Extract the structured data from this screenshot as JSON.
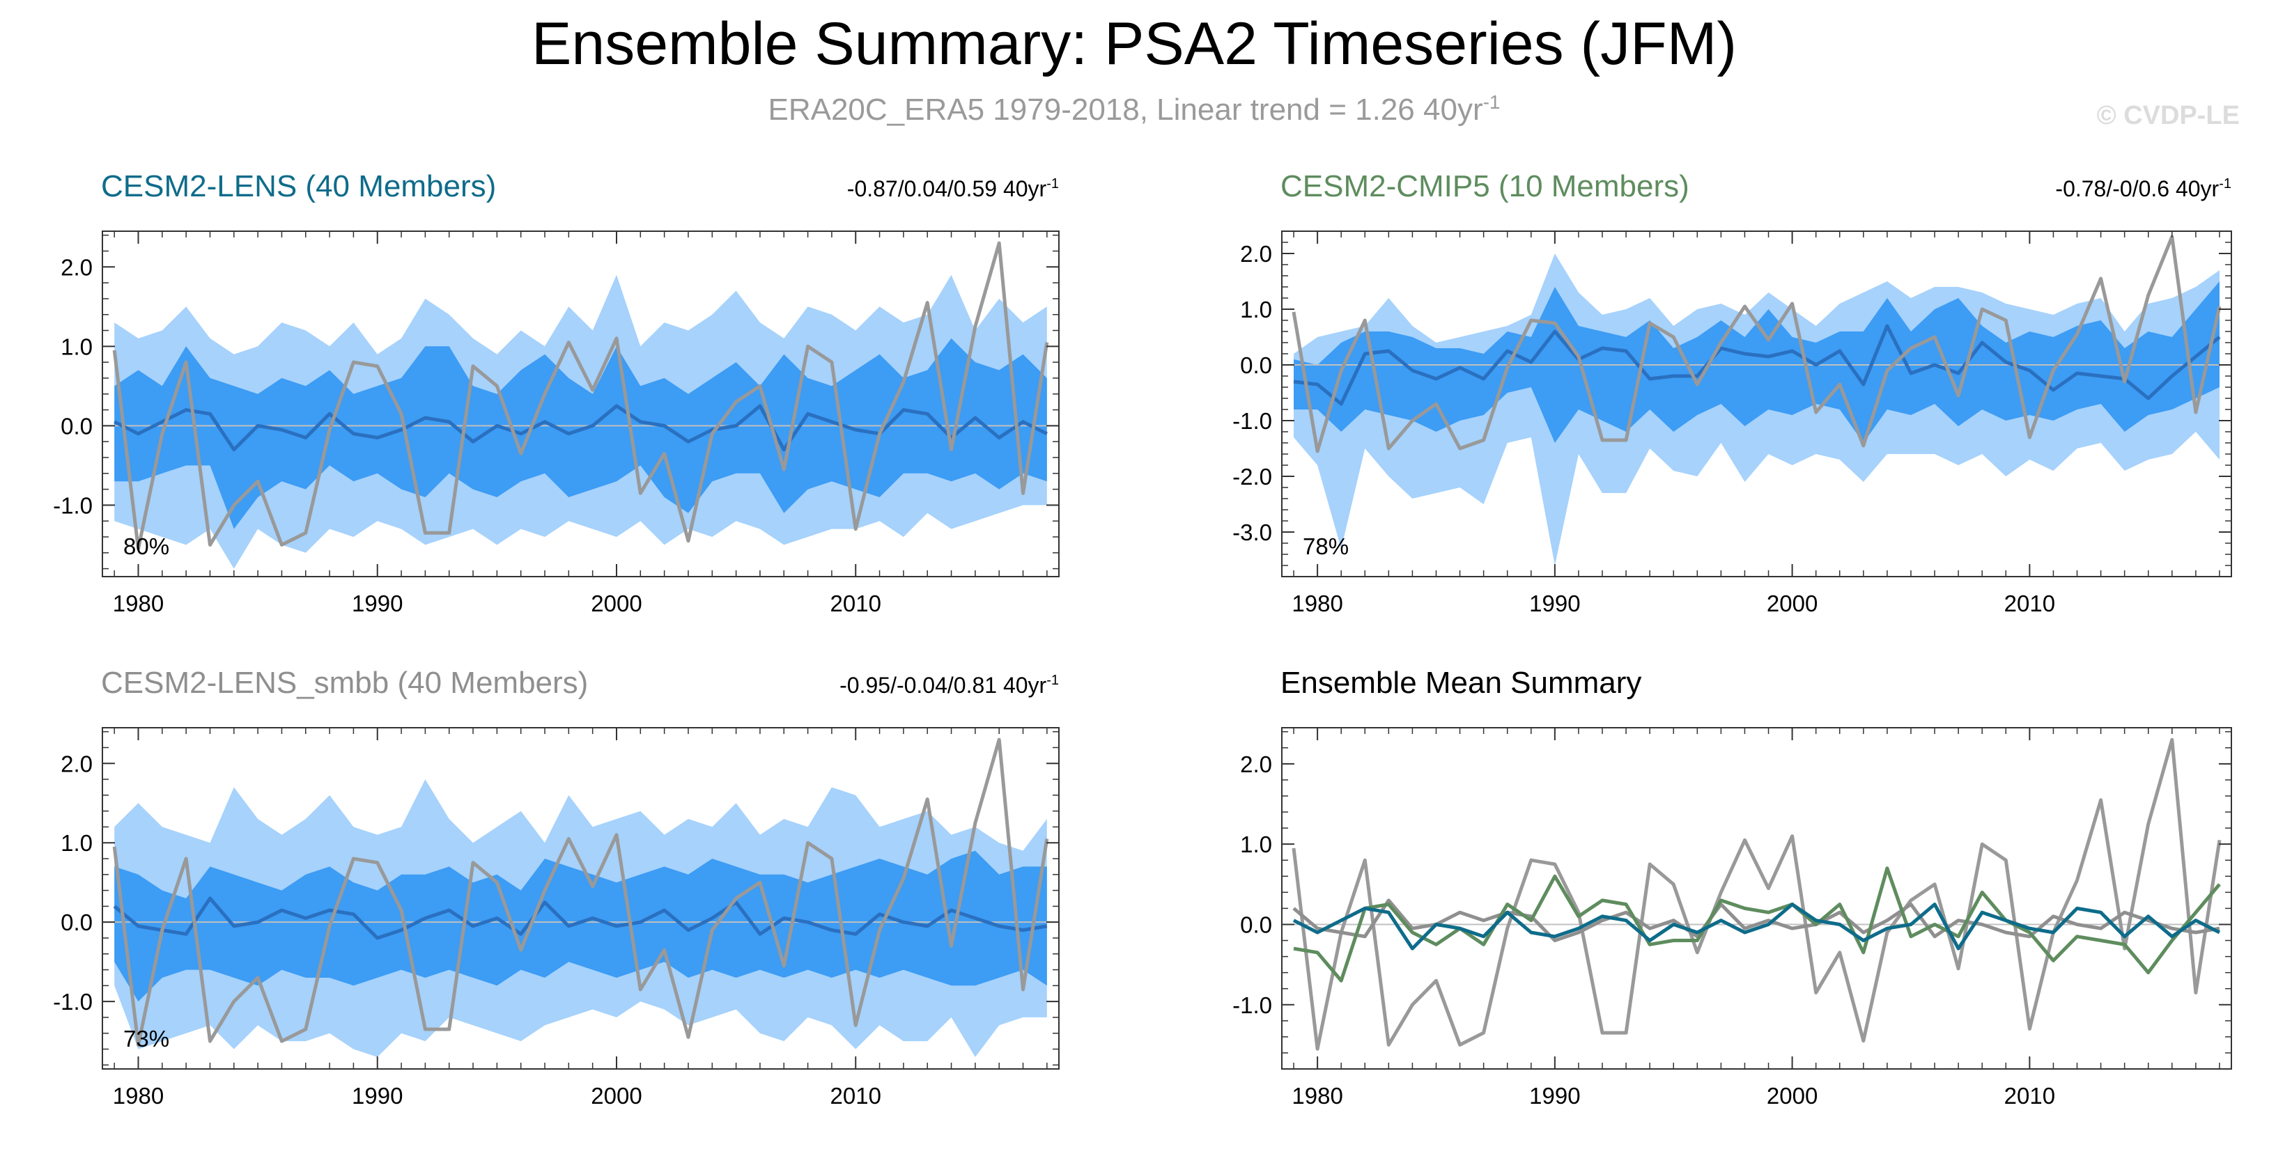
{
  "title": "Ensemble Summary: PSA2 Timeseries (JFM)",
  "subtitle_main": "ERA20C_ERA5 1979-2018, Linear trend = 1.26 40yr",
  "subtitle_sup": "-1",
  "watermark": "© CVDP-LE",
  "colors": {
    "outer_band": "#a6d2fc",
    "inner_band": "#3d9cf4",
    "ens_mean_line": "#2a70c0",
    "obs_line": "#999999",
    "cesm2_lens": "#0e6c8a",
    "cesm2_cmip5": "#5e8c5e",
    "cesm2_lens_smbb": "#8f8f8f",
    "zero_line": "#c0c0c0"
  },
  "chart_data": [
    {
      "type": "line",
      "title": "CESM2-LENS (40 Members)",
      "title_color": "#0e6c8a",
      "trend_label": "-0.87/0.04/0.59 40yr",
      "trend_sup": "-1",
      "pct_label": "80%",
      "years": [
        1979,
        1980,
        1981,
        1982,
        1983,
        1984,
        1985,
        1986,
        1987,
        1988,
        1989,
        1990,
        1991,
        1992,
        1993,
        1994,
        1995,
        1996,
        1997,
        1998,
        1999,
        2000,
        2001,
        2002,
        2003,
        2004,
        2005,
        2006,
        2007,
        2008,
        2009,
        2010,
        2011,
        2012,
        2013,
        2014,
        2015,
        2016,
        2017,
        2018
      ],
      "xticks": [
        1980,
        1990,
        2000,
        2010
      ],
      "yticks": [
        2.0,
        1.0,
        0.0,
        -1.0
      ],
      "ytick_labels": [
        "2.0",
        "1.0",
        "0.0",
        "-1.0"
      ],
      "ylim": [
        -1.9,
        2.45
      ],
      "xlim": [
        1978.5,
        2018.5
      ],
      "outer_upper": [
        1.3,
        1.1,
        1.2,
        1.5,
        1.1,
        0.9,
        1.0,
        1.3,
        1.2,
        1.0,
        1.3,
        0.9,
        1.1,
        1.6,
        1.4,
        1.1,
        0.9,
        1.2,
        1.0,
        1.5,
        1.2,
        1.9,
        1.0,
        1.3,
        1.2,
        1.4,
        1.7,
        1.3,
        1.1,
        1.5,
        1.4,
        1.2,
        1.5,
        1.3,
        1.4,
        1.9,
        1.2,
        1.6,
        1.3,
        1.5
      ],
      "outer_lower": [
        -1.2,
        -1.3,
        -1.4,
        -1.5,
        -1.3,
        -1.8,
        -1.3,
        -1.5,
        -1.6,
        -1.3,
        -1.4,
        -1.2,
        -1.3,
        -1.5,
        -1.4,
        -1.3,
        -1.5,
        -1.3,
        -1.4,
        -1.2,
        -1.3,
        -1.4,
        -1.2,
        -1.5,
        -1.3,
        -1.4,
        -1.2,
        -1.3,
        -1.5,
        -1.4,
        -1.3,
        -1.3,
        -1.2,
        -1.4,
        -1.1,
        -1.3,
        -1.2,
        -1.1,
        -1.0,
        -1.0
      ],
      "inner_upper": [
        0.5,
        0.7,
        0.5,
        1.0,
        0.6,
        0.5,
        0.4,
        0.6,
        0.5,
        0.7,
        0.4,
        0.5,
        0.6,
        1.0,
        1.0,
        0.5,
        0.4,
        0.7,
        0.9,
        0.6,
        0.4,
        1.0,
        0.5,
        0.6,
        0.4,
        0.6,
        0.8,
        0.5,
        0.9,
        0.6,
        0.5,
        0.7,
        0.9,
        0.6,
        0.7,
        1.1,
        0.8,
        0.7,
        0.9,
        0.6
      ],
      "inner_lower": [
        -0.7,
        -0.7,
        -0.6,
        -0.5,
        -0.5,
        -1.3,
        -0.9,
        -0.7,
        -0.8,
        -0.5,
        -0.7,
        -0.6,
        -0.8,
        -0.9,
        -0.6,
        -0.8,
        -0.9,
        -0.7,
        -0.6,
        -0.9,
        -0.8,
        -0.7,
        -0.5,
        -0.9,
        -1.1,
        -0.7,
        -0.6,
        -0.6,
        -1.1,
        -0.8,
        -0.7,
        -0.8,
        -0.9,
        -0.6,
        -0.6,
        -0.7,
        -0.6,
        -0.8,
        -0.6,
        -0.7
      ],
      "ens_mean": [
        0.05,
        -0.1,
        0.05,
        0.2,
        0.15,
        -0.3,
        0.0,
        -0.05,
        -0.15,
        0.15,
        -0.1,
        -0.15,
        -0.05,
        0.1,
        0.05,
        -0.2,
        0.0,
        -0.1,
        0.05,
        -0.1,
        0.0,
        0.25,
        0.05,
        0.0,
        -0.2,
        -0.05,
        0.0,
        0.25,
        -0.3,
        0.15,
        0.05,
        -0.05,
        -0.1,
        0.2,
        0.15,
        -0.15,
        0.1,
        -0.15,
        0.05,
        -0.1
      ],
      "obs": [
        0.95,
        -1.55,
        -0.1,
        0.8,
        -1.5,
        -1.0,
        -0.7,
        -1.5,
        -1.35,
        -0.05,
        0.8,
        0.75,
        0.15,
        -1.35,
        -1.35,
        0.75,
        0.5,
        -0.35,
        0.4,
        1.05,
        0.45,
        1.1,
        -0.85,
        -0.35,
        -1.45,
        -0.1,
        0.3,
        0.5,
        -0.55,
        1.0,
        0.8,
        -1.3,
        -0.1,
        0.55,
        1.55,
        -0.3,
        1.25,
        2.3,
        -0.85,
        1.05
      ]
    },
    {
      "type": "line",
      "title": "CESM2-CMIP5 (10 Members)",
      "title_color": "#5e8c5e",
      "trend_label": "-0.78/-0/0.6 40yr",
      "trend_sup": "-1",
      "pct_label": "78%",
      "years": [
        1979,
        1980,
        1981,
        1982,
        1983,
        1984,
        1985,
        1986,
        1987,
        1988,
        1989,
        1990,
        1991,
        1992,
        1993,
        1994,
        1995,
        1996,
        1997,
        1998,
        1999,
        2000,
        2001,
        2002,
        2003,
        2004,
        2005,
        2006,
        2007,
        2008,
        2009,
        2010,
        2011,
        2012,
        2013,
        2014,
        2015,
        2016,
        2017,
        2018
      ],
      "xticks": [
        1980,
        1990,
        2000,
        2010
      ],
      "yticks": [
        2.0,
        1.0,
        0.0,
        -1.0,
        -2.0,
        -3.0
      ],
      "ytick_labels": [
        "2.0",
        "1.0",
        "0.0",
        "-1.0",
        "-2.0",
        "-3.0"
      ],
      "ylim": [
        -3.8,
        2.4
      ],
      "xlim": [
        1978.5,
        2018.5
      ],
      "outer_upper": [
        0.2,
        0.5,
        0.6,
        0.7,
        1.2,
        0.7,
        0.4,
        0.5,
        0.6,
        0.7,
        0.9,
        2.0,
        1.3,
        0.9,
        1.0,
        1.2,
        0.7,
        1.0,
        1.1,
        0.9,
        1.3,
        1.0,
        0.7,
        1.1,
        1.3,
        1.5,
        1.2,
        1.4,
        1.4,
        1.3,
        1.1,
        1.0,
        0.9,
        1.1,
        1.2,
        0.6,
        1.1,
        1.2,
        1.4,
        1.7
      ],
      "outer_lower": [
        -1.3,
        -1.8,
        -3.3,
        -1.5,
        -2.0,
        -2.4,
        -2.3,
        -2.2,
        -2.5,
        -1.4,
        -1.3,
        -3.6,
        -1.6,
        -2.3,
        -2.3,
        -1.5,
        -1.9,
        -2.0,
        -1.4,
        -2.1,
        -1.6,
        -1.8,
        -1.6,
        -1.7,
        -2.1,
        -1.6,
        -1.6,
        -1.6,
        -1.8,
        -1.6,
        -2.0,
        -1.7,
        -1.9,
        -1.5,
        -1.4,
        -1.9,
        -1.7,
        -1.6,
        -1.2,
        -1.7
      ],
      "inner_upper": [
        0.1,
        0.0,
        0.4,
        0.6,
        0.6,
        0.5,
        0.3,
        0.3,
        0.2,
        0.6,
        0.5,
        1.4,
        0.7,
        0.6,
        0.5,
        0.8,
        0.3,
        0.5,
        0.8,
        0.5,
        1.0,
        0.5,
        0.4,
        0.6,
        0.6,
        1.2,
        0.6,
        1.0,
        1.2,
        0.7,
        0.4,
        0.6,
        0.5,
        0.7,
        0.8,
        0.3,
        0.6,
        0.5,
        1.0,
        1.5
      ],
      "inner_lower": [
        -0.8,
        -0.8,
        -1.2,
        -0.8,
        -0.9,
        -1.0,
        -1.2,
        -1.0,
        -0.9,
        -0.5,
        -0.4,
        -1.4,
        -0.8,
        -1.0,
        -1.2,
        -0.8,
        -1.2,
        -0.9,
        -0.7,
        -1.1,
        -0.8,
        -0.9,
        -0.7,
        -0.8,
        -1.4,
        -0.8,
        -0.9,
        -0.7,
        -1.1,
        -0.8,
        -1.0,
        -0.9,
        -1.0,
        -0.8,
        -0.7,
        -1.2,
        -0.9,
        -0.8,
        -0.6,
        -0.4
      ],
      "ens_mean": [
        -0.3,
        -0.35,
        -0.7,
        0.2,
        0.25,
        -0.1,
        -0.25,
        -0.05,
        -0.25,
        0.25,
        0.05,
        0.6,
        0.1,
        0.3,
        0.25,
        -0.25,
        -0.2,
        -0.2,
        0.3,
        0.2,
        0.15,
        0.25,
        0.0,
        0.25,
        -0.35,
        0.7,
        -0.15,
        0.0,
        -0.15,
        0.4,
        0.05,
        -0.1,
        -0.45,
        -0.15,
        -0.2,
        -0.25,
        -0.6,
        -0.2,
        0.15,
        0.5
      ],
      "obs": [
        0.95,
        -1.55,
        -0.1,
        0.8,
        -1.5,
        -1.0,
        -0.7,
        -1.5,
        -1.35,
        -0.05,
        0.8,
        0.75,
        0.15,
        -1.35,
        -1.35,
        0.75,
        0.5,
        -0.35,
        0.4,
        1.05,
        0.45,
        1.1,
        -0.85,
        -0.35,
        -1.45,
        -0.1,
        0.3,
        0.5,
        -0.55,
        1.0,
        0.8,
        -1.3,
        -0.1,
        0.55,
        1.55,
        -0.3,
        1.25,
        2.3,
        -0.85,
        1.05
      ]
    },
    {
      "type": "line",
      "title": "CESM2-LENS_smbb (40 Members)",
      "title_color": "#8f8f8f",
      "trend_label": "-0.95/-0.04/0.81 40yr",
      "trend_sup": "-1",
      "pct_label": "73%",
      "years": [
        1979,
        1980,
        1981,
        1982,
        1983,
        1984,
        1985,
        1986,
        1987,
        1988,
        1989,
        1990,
        1991,
        1992,
        1993,
        1994,
        1995,
        1996,
        1997,
        1998,
        1999,
        2000,
        2001,
        2002,
        2003,
        2004,
        2005,
        2006,
        2007,
        2008,
        2009,
        2010,
        2011,
        2012,
        2013,
        2014,
        2015,
        2016,
        2017,
        2018
      ],
      "xticks": [
        1980,
        1990,
        2000,
        2010
      ],
      "yticks": [
        2.0,
        1.0,
        0.0,
        -1.0
      ],
      "ytick_labels": [
        "2.0",
        "1.0",
        "0.0",
        "-1.0"
      ],
      "ylim": [
        -1.85,
        2.45
      ],
      "xlim": [
        1978.5,
        2018.5
      ],
      "outer_upper": [
        1.2,
        1.5,
        1.2,
        1.1,
        1.0,
        1.7,
        1.3,
        1.1,
        1.3,
        1.6,
        1.2,
        1.1,
        1.2,
        1.8,
        1.3,
        1.0,
        1.2,
        1.4,
        1.0,
        1.6,
        1.2,
        1.3,
        1.4,
        1.1,
        1.3,
        1.2,
        1.5,
        1.1,
        1.3,
        1.2,
        1.7,
        1.6,
        1.2,
        1.3,
        1.4,
        1.1,
        1.2,
        1.0,
        0.9,
        1.3
      ],
      "outer_lower": [
        -0.8,
        -1.6,
        -1.5,
        -1.4,
        -1.3,
        -1.6,
        -1.3,
        -1.5,
        -1.5,
        -1.4,
        -1.6,
        -1.7,
        -1.4,
        -1.5,
        -1.2,
        -1.3,
        -1.4,
        -1.5,
        -1.3,
        -1.2,
        -1.1,
        -1.2,
        -1.0,
        -1.1,
        -1.3,
        -1.2,
        -1.1,
        -1.4,
        -1.5,
        -1.2,
        -1.3,
        -1.6,
        -1.3,
        -1.5,
        -1.5,
        -1.2,
        -1.7,
        -1.3,
        -1.2,
        -1.2
      ],
      "inner_upper": [
        0.7,
        0.6,
        0.4,
        0.3,
        0.7,
        0.6,
        0.5,
        0.4,
        0.6,
        0.7,
        0.5,
        0.4,
        0.6,
        0.6,
        0.7,
        0.5,
        0.6,
        0.4,
        0.8,
        0.7,
        0.6,
        0.5,
        0.6,
        0.7,
        0.6,
        0.8,
        0.7,
        0.6,
        0.6,
        0.5,
        0.6,
        0.7,
        0.8,
        0.7,
        0.6,
        0.8,
        0.9,
        0.6,
        0.7,
        0.7
      ],
      "inner_lower": [
        -0.5,
        -1.0,
        -0.7,
        -0.6,
        -0.6,
        -0.7,
        -0.8,
        -0.6,
        -0.7,
        -0.7,
        -0.8,
        -0.7,
        -0.6,
        -0.7,
        -0.6,
        -0.7,
        -0.8,
        -0.6,
        -0.7,
        -0.5,
        -0.6,
        -0.7,
        -0.6,
        -0.5,
        -0.7,
        -0.6,
        -0.7,
        -0.6,
        -0.7,
        -0.6,
        -0.7,
        -0.6,
        -0.7,
        -0.6,
        -0.7,
        -0.8,
        -0.8,
        -0.7,
        -0.6,
        -0.8
      ],
      "ens_mean": [
        0.2,
        -0.05,
        -0.1,
        -0.15,
        0.3,
        -0.05,
        0.0,
        0.15,
        0.05,
        0.15,
        0.1,
        -0.2,
        -0.1,
        0.05,
        0.15,
        -0.05,
        0.05,
        -0.15,
        0.25,
        -0.05,
        0.05,
        -0.05,
        0.0,
        0.15,
        -0.1,
        0.05,
        0.25,
        -0.15,
        0.05,
        0.0,
        -0.1,
        -0.15,
        0.1,
        0.0,
        -0.05,
        0.15,
        0.05,
        -0.05,
        -0.1,
        -0.05
      ],
      "obs": [
        0.95,
        -1.55,
        -0.1,
        0.8,
        -1.5,
        -1.0,
        -0.7,
        -1.5,
        -1.35,
        -0.05,
        0.8,
        0.75,
        0.15,
        -1.35,
        -1.35,
        0.75,
        0.5,
        -0.35,
        0.4,
        1.05,
        0.45,
        1.1,
        -0.85,
        -0.35,
        -1.45,
        -0.1,
        0.3,
        0.5,
        -0.55,
        1.0,
        0.8,
        -1.3,
        -0.1,
        0.55,
        1.55,
        -0.3,
        1.25,
        2.3,
        -0.85,
        1.05
      ]
    },
    {
      "type": "line",
      "title": "Ensemble Mean Summary",
      "title_color": "#000000",
      "trend_label": "",
      "trend_sup": "",
      "pct_label": "",
      "years": [
        1979,
        1980,
        1981,
        1982,
        1983,
        1984,
        1985,
        1986,
        1987,
        1988,
        1989,
        1990,
        1991,
        1992,
        1993,
        1994,
        1995,
        1996,
        1997,
        1998,
        1999,
        2000,
        2001,
        2002,
        2003,
        2004,
        2005,
        2006,
        2007,
        2008,
        2009,
        2010,
        2011,
        2012,
        2013,
        2014,
        2015,
        2016,
        2017,
        2018
      ],
      "xticks": [
        1980,
        1990,
        2000,
        2010
      ],
      "yticks": [
        2.0,
        1.0,
        0.0,
        -1.0
      ],
      "ytick_labels": [
        "2.0",
        "1.0",
        "0.0",
        "-1.0"
      ],
      "ylim": [
        -1.8,
        2.45
      ],
      "xlim": [
        1978.5,
        2018.5
      ],
      "series": [
        {
          "name": "ERA20C_ERA5",
          "color": "#999999",
          "values": [
            0.95,
            -1.55,
            -0.1,
            0.8,
            -1.5,
            -1.0,
            -0.7,
            -1.5,
            -1.35,
            -0.05,
            0.8,
            0.75,
            0.15,
            -1.35,
            -1.35,
            0.75,
            0.5,
            -0.35,
            0.4,
            1.05,
            0.45,
            1.1,
            -0.85,
            -0.35,
            -1.45,
            -0.1,
            0.3,
            0.5,
            -0.55,
            1.0,
            0.8,
            -1.3,
            -0.1,
            0.55,
            1.55,
            -0.3,
            1.25,
            2.3,
            -0.85,
            1.05
          ]
        },
        {
          "name": "CESM2-LENS_smbb",
          "color": "#8f8f8f",
          "values": [
            0.2,
            -0.05,
            -0.1,
            -0.15,
            0.3,
            -0.05,
            0.0,
            0.15,
            0.05,
            0.15,
            0.1,
            -0.2,
            -0.1,
            0.05,
            0.15,
            -0.05,
            0.05,
            -0.15,
            0.25,
            -0.05,
            0.05,
            -0.05,
            0.0,
            0.15,
            -0.1,
            0.05,
            0.25,
            -0.15,
            0.05,
            0.0,
            -0.1,
            -0.15,
            0.1,
            0.0,
            -0.05,
            0.15,
            0.05,
            -0.05,
            -0.1,
            -0.05
          ]
        },
        {
          "name": "CESM2-CMIP5",
          "color": "#5e8c5e",
          "values": [
            -0.3,
            -0.35,
            -0.7,
            0.2,
            0.25,
            -0.1,
            -0.25,
            -0.05,
            -0.25,
            0.25,
            0.05,
            0.6,
            0.1,
            0.3,
            0.25,
            -0.25,
            -0.2,
            -0.2,
            0.3,
            0.2,
            0.15,
            0.25,
            0.0,
            0.25,
            -0.35,
            0.7,
            -0.15,
            0.0,
            -0.15,
            0.4,
            0.05,
            -0.1,
            -0.45,
            -0.15,
            -0.2,
            -0.25,
            -0.6,
            -0.2,
            0.15,
            0.5
          ]
        },
        {
          "name": "CESM2-LENS",
          "color": "#0e6c8a",
          "values": [
            0.05,
            -0.1,
            0.05,
            0.2,
            0.15,
            -0.3,
            0.0,
            -0.05,
            -0.15,
            0.15,
            -0.1,
            -0.15,
            -0.05,
            0.1,
            0.05,
            -0.2,
            0.0,
            -0.1,
            0.05,
            -0.1,
            0.0,
            0.25,
            0.05,
            0.0,
            -0.2,
            -0.05,
            0.0,
            0.25,
            -0.3,
            0.15,
            0.05,
            -0.05,
            -0.1,
            0.2,
            0.15,
            -0.15,
            0.1,
            -0.15,
            0.05,
            -0.1
          ]
        }
      ]
    }
  ]
}
